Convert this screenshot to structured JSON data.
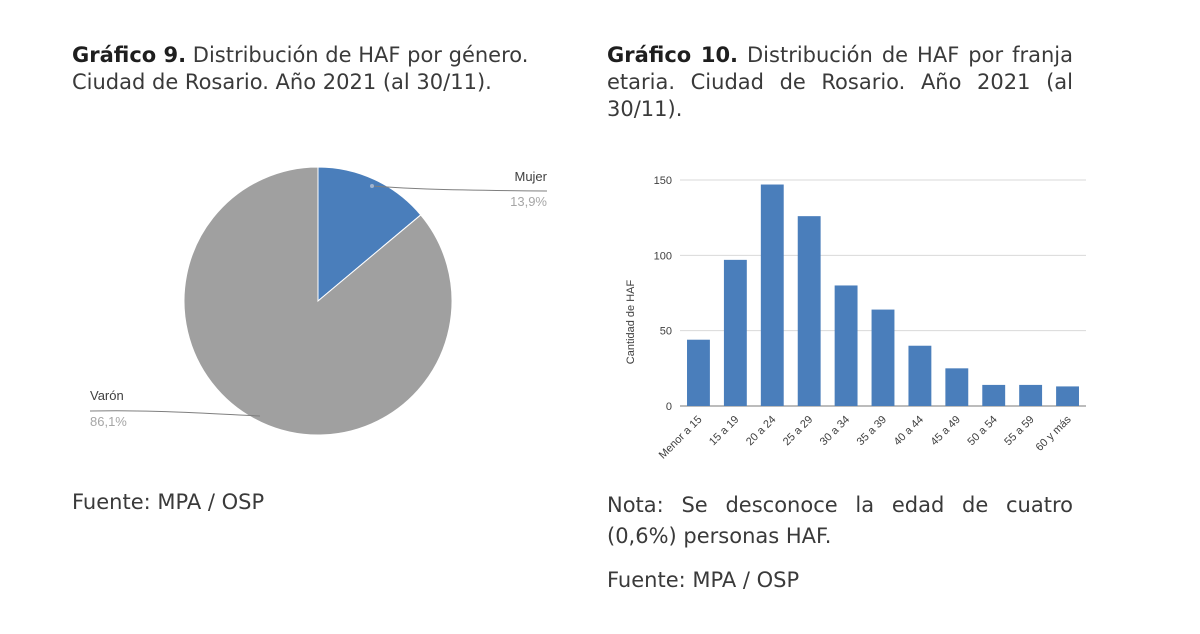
{
  "captions": {
    "chart9": {
      "bold": "Gráfico 9.",
      "text": " Distribución de HAF por género. Ciudad de Rosario. Año 2021 (al 30/11)."
    },
    "chart10": {
      "bold": "Gráfico 10.",
      "text": " Distribución de HAF por franja etaria. Ciudad de Rosario. Año 2021 (al 30/11)."
    }
  },
  "sources": {
    "chart9": "Fuente: MPA / OSP",
    "chart10_note": "Nota: Se desconoce la edad de cuatro (0,6%) personas HAF.",
    "chart10": "Fuente: MPA / OSP"
  },
  "colors": {
    "mujer": "#4a7ebb",
    "varon": "#a0a0a0",
    "bar": "#4a7ebb",
    "grid": "#d9d9d9",
    "axis": "#a6a6a6"
  },
  "chart_data": [
    {
      "type": "pie",
      "title": "Distribución de HAF por género. Ciudad de Rosario. Año 2021 (al 30/11).",
      "categories": [
        "Mujer",
        "Varón"
      ],
      "values": [
        13.9,
        86.1
      ],
      "labels": [
        "13,9%",
        "86,1%"
      ],
      "legend": "none"
    },
    {
      "type": "bar",
      "title": "Distribución de HAF por franja etaria. Ciudad de Rosario. Año 2021 (al 30/11).",
      "categories": [
        "Menor a 15",
        "15 a 19",
        "20 a 24",
        "25 a 29",
        "30 a 34",
        "35 a 39",
        "40 a 44",
        "45 a 49",
        "50 a 54",
        "55 a 59",
        "60 y más"
      ],
      "values": [
        44,
        97,
        147,
        126,
        80,
        64,
        40,
        25,
        14,
        14,
        13
      ],
      "xlabel": "",
      "ylabel": "Cantidad de HAF",
      "ylim": [
        0,
        150
      ],
      "yticks": [
        0,
        50,
        100,
        150
      ],
      "grid": true,
      "legend": "none"
    }
  ]
}
